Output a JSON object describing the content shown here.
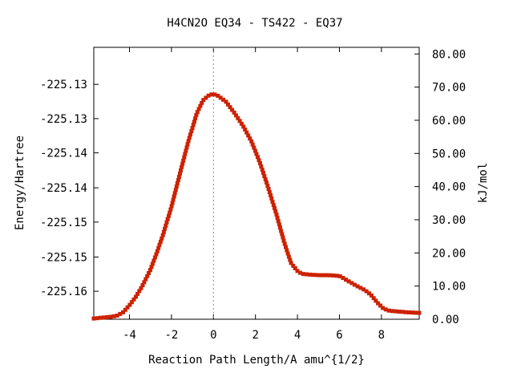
{
  "chart_data": {
    "type": "line",
    "title": "H4CN2O   EQ34 - TS422 - EQ37",
    "xlabel": "Reaction Path Length/A amu^{1/2}",
    "ylabel": "Energy/Hartree",
    "y2label": "kJ/mol",
    "xlim": [
      -5.7,
      9.8
    ],
    "ylim": [
      -225.1635,
      -225.1246
    ],
    "y2lim": [
      0,
      82
    ],
    "x_ticks": [
      -4,
      -2,
      0,
      2,
      4,
      6,
      8
    ],
    "x_tick_labels": [
      "-4",
      "-2",
      "0",
      "2",
      "4",
      "6",
      "8"
    ],
    "y_ticks": [
      -225.1595,
      -225.1546,
      -225.1496,
      -225.1447,
      -225.1397,
      -225.1348,
      -225.1299
    ],
    "y_tick_labels": [
      "-225.16",
      "-225.15",
      "-225.15",
      "-225.14",
      "-225.14",
      "-225.13",
      "-225.13"
    ],
    "y2_ticks": [
      0,
      10,
      20,
      30,
      40,
      50,
      60,
      70,
      80
    ],
    "y2_tick_labels": [
      "0.00",
      "10.00",
      "20.00",
      "30.00",
      "40.00",
      "50.00",
      "60.00",
      "70.00",
      "80.00"
    ],
    "grid": false,
    "ts_marker_x": 0,
    "series": [
      {
        "line_color": "#00a000",
        "marker_color": "#cc2200",
        "x": [
          -5.7,
          -5.4,
          -5.0,
          -4.6,
          -4.3,
          -4.0,
          -3.7,
          -3.4,
          -3.0,
          -2.7,
          -2.4,
          -2.0,
          -1.6,
          -1.2,
          -0.8,
          -0.5,
          -0.2,
          0.0,
          0.2,
          0.6,
          1.0,
          1.4,
          1.8,
          2.2,
          2.6,
          3.0,
          3.4,
          3.7,
          4.0,
          4.2,
          4.5,
          5.0,
          5.5,
          6.0,
          6.4,
          6.8,
          7.2,
          7.5,
          7.8,
          8.1,
          8.4,
          8.8,
          9.2,
          9.8
        ],
        "y": [
          -225.1634,
          -225.1633,
          -225.1632,
          -225.163,
          -225.1625,
          -225.1615,
          -225.1603,
          -225.1588,
          -225.1564,
          -225.154,
          -225.1514,
          -225.1474,
          -225.1427,
          -225.1381,
          -225.1341,
          -225.1322,
          -225.1314,
          -225.1313,
          -225.1315,
          -225.1324,
          -225.134,
          -225.1358,
          -225.138,
          -225.141,
          -225.1446,
          -225.1485,
          -225.1528,
          -225.1555,
          -225.1566,
          -225.157,
          -225.1571,
          -225.1572,
          -225.1572,
          -225.1573,
          -225.158,
          -225.1587,
          -225.1593,
          -225.16,
          -225.1611,
          -225.162,
          -225.1623,
          -225.1624,
          -225.1625,
          -225.1626
        ]
      }
    ]
  }
}
